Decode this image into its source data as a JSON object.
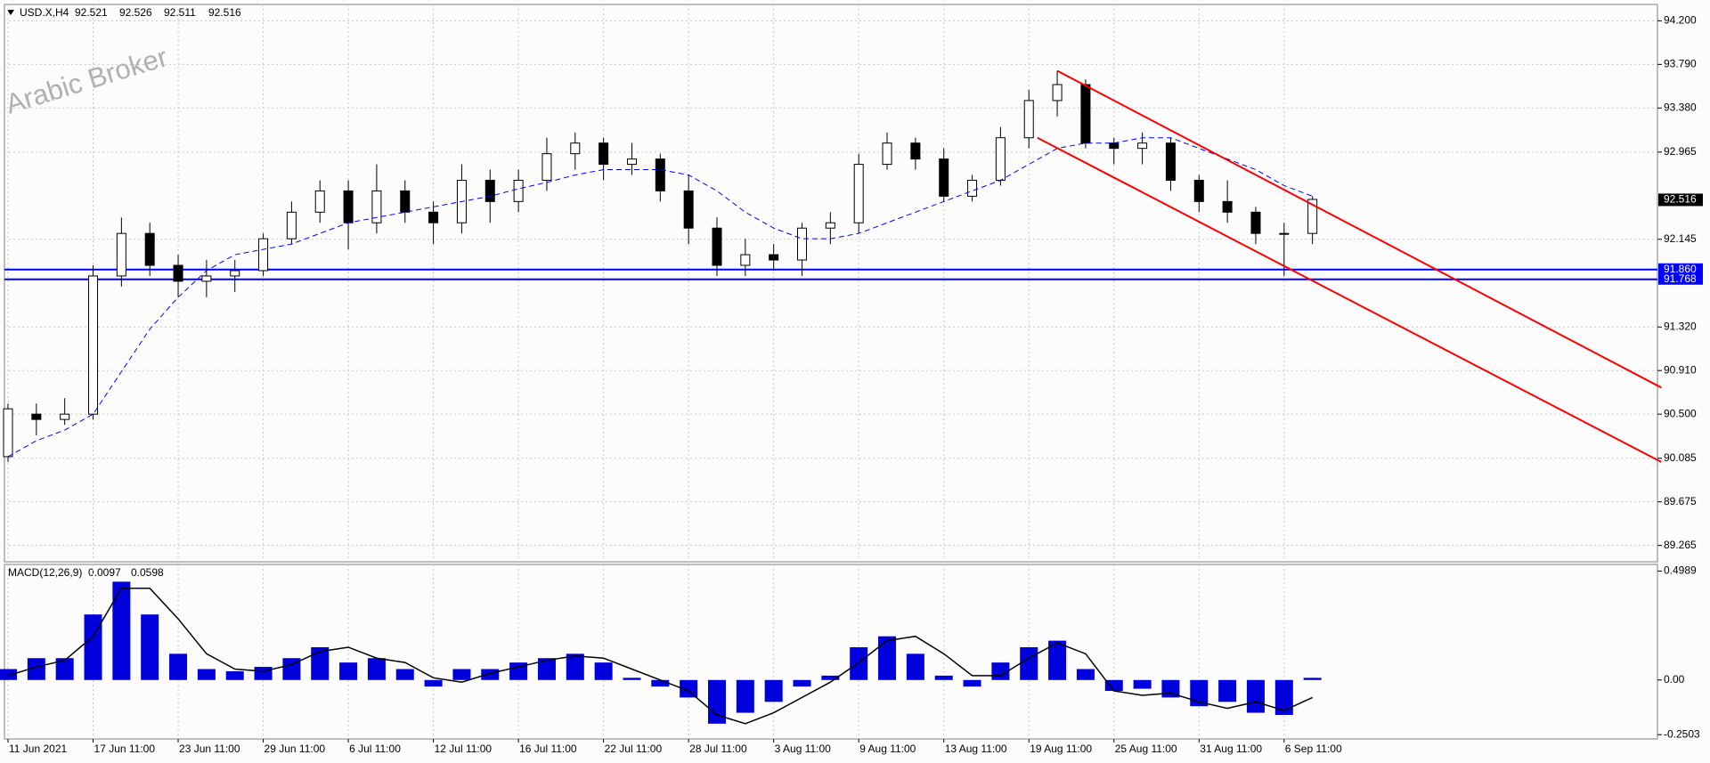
{
  "chart_data": {
    "type": "candlestick",
    "header": {
      "symbol": "USD.X,H4",
      "ohlc": [
        92.521,
        92.526,
        92.511,
        92.516
      ]
    },
    "watermark": "Arabic Broker",
    "categories": [
      "11 Jun 2021",
      null,
      null,
      "17 Jun 11:00",
      null,
      null,
      "23 Jun 11:00",
      null,
      null,
      "29 Jun 11:00",
      null,
      null,
      "6 Jul 11:00",
      null,
      null,
      "12 Jul 11:00",
      null,
      null,
      "16 Jul 11:00",
      null,
      null,
      "22 Jul 11:00",
      null,
      null,
      "28 Jul 11:00",
      null,
      null,
      "3 Aug 11:00",
      null,
      null,
      "9 Aug 11:00",
      null,
      null,
      "13 Aug 11:00",
      null,
      null,
      "19 Aug 11:00",
      null,
      null,
      "25 Aug 11:00",
      null,
      null,
      "31 Aug 11:00",
      null,
      null,
      "6 Sep 11:00",
      null
    ],
    "open": [
      90.1,
      90.5,
      90.45,
      90.5,
      91.8,
      92.2,
      91.9,
      91.75,
      91.8,
      91.85,
      92.15,
      92.4,
      92.6,
      92.3,
      92.6,
      92.4,
      92.3,
      92.7,
      92.5,
      92.7,
      92.95,
      93.05,
      92.85,
      92.9,
      92.6,
      92.25,
      91.9,
      92.0,
      91.95,
      92.25,
      92.3,
      92.85,
      93.05,
      92.9,
      92.55,
      92.7,
      93.1,
      93.45,
      93.6,
      93.05,
      93.0,
      93.05,
      92.7,
      92.5,
      92.4,
      92.2,
      92.2
    ],
    "high": [
      90.6,
      90.6,
      90.65,
      91.9,
      92.35,
      92.3,
      92.0,
      91.95,
      91.95,
      92.2,
      92.5,
      92.7,
      92.7,
      92.85,
      92.7,
      92.5,
      92.85,
      92.8,
      92.8,
      93.1,
      93.15,
      93.1,
      93.05,
      92.95,
      92.75,
      92.35,
      92.15,
      92.1,
      92.3,
      92.4,
      92.95,
      93.15,
      93.1,
      93.0,
      92.75,
      93.2,
      93.55,
      93.73,
      93.65,
      93.1,
      93.15,
      93.1,
      92.75,
      92.7,
      92.45,
      92.3,
      92.55
    ],
    "low": [
      90.05,
      90.3,
      90.4,
      90.45,
      91.7,
      91.8,
      91.6,
      91.6,
      91.65,
      91.8,
      92.1,
      92.3,
      92.05,
      92.2,
      92.3,
      92.1,
      92.2,
      92.3,
      92.4,
      92.6,
      92.8,
      92.7,
      92.75,
      92.5,
      92.1,
      91.8,
      91.8,
      91.85,
      91.8,
      92.1,
      92.2,
      92.8,
      92.8,
      92.5,
      92.5,
      92.65,
      93.0,
      93.3,
      93.0,
      92.85,
      92.85,
      92.6,
      92.4,
      92.3,
      92.1,
      91.8,
      92.1
    ],
    "close": [
      90.55,
      90.45,
      90.5,
      91.8,
      92.2,
      91.9,
      91.75,
      91.8,
      91.85,
      92.15,
      92.4,
      92.6,
      92.3,
      92.6,
      92.4,
      92.3,
      92.7,
      92.5,
      92.7,
      92.95,
      93.05,
      92.85,
      92.9,
      92.6,
      92.25,
      91.9,
      92.0,
      91.95,
      92.25,
      92.3,
      92.85,
      93.05,
      92.9,
      92.55,
      92.7,
      93.1,
      93.45,
      93.6,
      93.05,
      93.0,
      93.05,
      92.7,
      92.5,
      92.4,
      92.2,
      92.2,
      92.52
    ],
    "up_color": "#ffffff",
    "down_color": "#000000",
    "ma": {
      "color": "#0000ff",
      "values": [
        90.1,
        90.25,
        90.35,
        90.5,
        90.9,
        91.3,
        91.6,
        91.85,
        92.0,
        92.05,
        92.1,
        92.2,
        92.3,
        92.35,
        92.4,
        92.45,
        92.5,
        92.55,
        92.62,
        92.68,
        92.75,
        92.8,
        92.8,
        92.8,
        92.75,
        92.6,
        92.4,
        92.25,
        92.15,
        92.15,
        92.2,
        92.3,
        92.4,
        92.5,
        92.6,
        92.7,
        92.85,
        93.0,
        93.05,
        93.05,
        93.1,
        93.1,
        93.0,
        92.9,
        92.8,
        92.65,
        92.55
      ]
    },
    "trendlines": [
      {
        "color": "#ff0000",
        "x": [
          37,
          58.3
        ],
        "y": [
          93.73,
          90.75
        ]
      },
      {
        "color": "#ff0000",
        "x": [
          36.3,
          58.3
        ],
        "y": [
          93.1,
          90.05
        ]
      }
    ],
    "levels": [
      {
        "value": 91.86,
        "label": "91.860"
      },
      91.768
    ],
    "level_color": "#0000ff",
    "last_price": 92.516,
    "ylim": [
      89.111,
      94.354
    ],
    "yticks": [
      {
        "value": 94.2,
        "label": "94.200"
      },
      {
        "value": 93.79,
        "label": "93.790"
      },
      {
        "value": 93.38,
        "label": "93.380"
      },
      92.965,
      92.145,
      {
        "value": 91.32,
        "label": "91.320"
      },
      {
        "value": 90.91,
        "label": "90.910"
      },
      {
        "value": 90.5,
        "label": "90.500"
      },
      90.085,
      89.675,
      89.265
    ],
    "grid": true,
    "macd": {
      "label": "MACD(12,26,9)",
      "current": [
        0.0097,
        0.0598
      ],
      "color": "#0000dd",
      "signal_color": "#000000",
      "histogram": [
        0.05,
        0.1,
        0.1,
        0.3,
        0.45,
        0.3,
        0.12,
        0.05,
        0.04,
        0.06,
        0.1,
        0.15,
        0.08,
        0.1,
        0.05,
        -0.03,
        0.05,
        0.05,
        0.08,
        0.1,
        0.12,
        0.08,
        0.01,
        -0.03,
        -0.08,
        -0.2,
        -0.15,
        -0.1,
        -0.03,
        0.02,
        0.15,
        0.2,
        0.12,
        0.02,
        -0.03,
        0.08,
        0.15,
        0.18,
        0.05,
        -0.05,
        -0.04,
        -0.08,
        -0.12,
        -0.1,
        -0.15,
        -0.16,
        0.01
      ],
      "signal": [
        0.02,
        0.06,
        0.09,
        0.2,
        0.42,
        0.42,
        0.28,
        0.12,
        0.05,
        0.04,
        0.07,
        0.13,
        0.15,
        0.1,
        0.08,
        0.01,
        -0.01,
        0.03,
        0.06,
        0.09,
        0.11,
        0.1,
        0.05,
        0.0,
        -0.05,
        -0.16,
        -0.2,
        -0.15,
        -0.08,
        -0.01,
        0.08,
        0.18,
        0.2,
        0.12,
        0.02,
        0.02,
        0.1,
        0.17,
        0.12,
        -0.05,
        -0.07,
        -0.06,
        -0.1,
        -0.13,
        -0.1,
        -0.14,
        -0.08
      ],
      "ylim": [
        -0.27,
        0.529
      ],
      "yticks": [
        0.4989,
        {
          "value": 0,
          "label": "0.00"
        },
        -0.2503
      ]
    }
  }
}
